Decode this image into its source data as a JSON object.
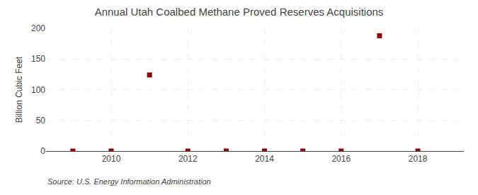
{
  "chart_data": {
    "type": "scatter",
    "title": "Annual Utah Coalbed Methane Proved Reserves Acquisitions",
    "ylabel": "Billion Cubic Feet",
    "source": "Source: U.S. Energy Information Administration",
    "x": [
      2009,
      2010,
      2011,
      2012,
      2013,
      2014,
      2015,
      2016,
      2017,
      2018
    ],
    "values": [
      0,
      0,
      124,
      0,
      0,
      0,
      0,
      0,
      188,
      0
    ],
    "color": "#8b0000",
    "marker": "square",
    "xlim": [
      2008.3,
      2019.2
    ],
    "ylim": [
      0,
      200
    ],
    "xticks": [
      2010,
      2012,
      2014,
      2016,
      2018
    ],
    "yticks": [
      0,
      50,
      100,
      150,
      200
    ],
    "grid": true
  }
}
